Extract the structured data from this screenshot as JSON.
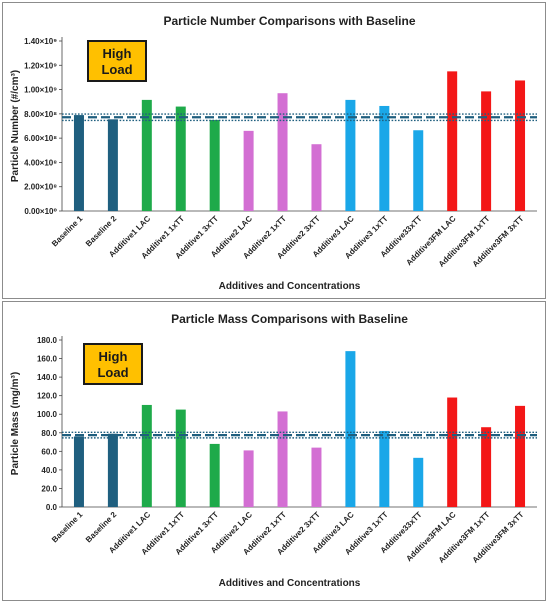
{
  "colors": {
    "baseline": "#1f5f7f",
    "additive1": "#1eaa4a",
    "additive2": "#d36fd3",
    "additive3": "#1aa7e8",
    "additive3fm": "#f31717",
    "badge_fill": "#ffc000",
    "reference_line": "#1f5f7f"
  },
  "chart_data": [
    {
      "type": "bar",
      "title": "Particle Number Comparisons with Baseline",
      "xlabel": "Additives and Concentrations",
      "ylabel": "Particle Number (#/cm³)",
      "badge": [
        "High",
        "Load"
      ],
      "ylim": [
        0,
        1400000000.0
      ],
      "yticks": [
        0,
        200000000.0,
        400000000.0,
        600000000.0,
        800000000.0,
        1000000000.0,
        1200000000.0,
        1400000000.0
      ],
      "ytick_labels": [
        "0.00×10⁰",
        "2.00×10⁸",
        "4.00×10⁸",
        "6.00×10⁸",
        "8.00×10⁸",
        "1.00×10⁹",
        "1.20×10⁹",
        "1.40×10⁹"
      ],
      "grid": false,
      "legend": "none",
      "categories": [
        "Baseline 1",
        "Baseline 2",
        "Additive1 LAC",
        "Additive1 1xTT",
        "Additive1 3xTT",
        "Additive2 LAC",
        "Additive2 1xTT",
        "Additive2 3xTT",
        "Additive3 LAC",
        "Additive3 1xTT",
        "Additive33xTT",
        "Additive3FM LAC",
        "Additive3FM 1xTT",
        "Additive3FM 3xTT"
      ],
      "values": [
        790000000.0,
        755000000.0,
        915000000.0,
        860000000.0,
        750000000.0,
        660000000.0,
        970000000.0,
        550000000.0,
        915000000.0,
        865000000.0,
        665000000.0,
        1150000000.0,
        985000000.0,
        1075000000.0
      ],
      "groups": [
        "baseline",
        "baseline",
        "additive1",
        "additive1",
        "additive1",
        "additive2",
        "additive2",
        "additive2",
        "additive3",
        "additive3",
        "additive3",
        "additive3fm",
        "additive3fm",
        "additive3fm"
      ],
      "reference_lines": [
        {
          "y": 772000000.0,
          "style": "dashed"
        },
        {
          "y": 798000000.0,
          "style": "dotted"
        },
        {
          "y": 746000000.0,
          "style": "dotted"
        }
      ]
    },
    {
      "type": "bar",
      "title": "Particle Mass Comparisons with Baseline",
      "xlabel": "Additives and Concentrations",
      "ylabel": "Particle Mass (mg/m³)",
      "badge": [
        "High",
        "Load"
      ],
      "ylim": [
        0,
        180
      ],
      "yticks": [
        0,
        20,
        40,
        60,
        80,
        100,
        120,
        140,
        160,
        180
      ],
      "ytick_labels": [
        "0.0",
        "20.0",
        "40.0",
        "60.0",
        "80.0",
        "100.0",
        "120.0",
        "140.0",
        "160.0",
        "180.0"
      ],
      "grid": false,
      "legend": "none",
      "categories": [
        "Baseline 1",
        "Baseline 2",
        "Additive1 LAC",
        "Additive1 1xTT",
        "Additive1 3xTT",
        "Additive2 LAC",
        "Additive2 1xTT",
        "Additive2 3xTT",
        "Additive3 LAC",
        "Additive3 1xTT",
        "Additive33xTT",
        "Additive3FM LAC",
        "Additive3FM 1xTT",
        "Additive3FM 3xTT"
      ],
      "values": [
        76,
        79,
        110,
        105,
        68,
        61,
        103,
        64,
        168,
        82,
        53,
        118,
        86,
        109
      ],
      "groups": [
        "baseline",
        "baseline",
        "additive1",
        "additive1",
        "additive1",
        "additive2",
        "additive2",
        "additive2",
        "additive3",
        "additive3",
        "additive3",
        "additive3fm",
        "additive3fm",
        "additive3fm"
      ],
      "reference_lines": [
        {
          "y": 77.5,
          "style": "dashed"
        },
        {
          "y": 80.5,
          "style": "dotted"
        },
        {
          "y": 74.5,
          "style": "dotted"
        }
      ]
    }
  ]
}
